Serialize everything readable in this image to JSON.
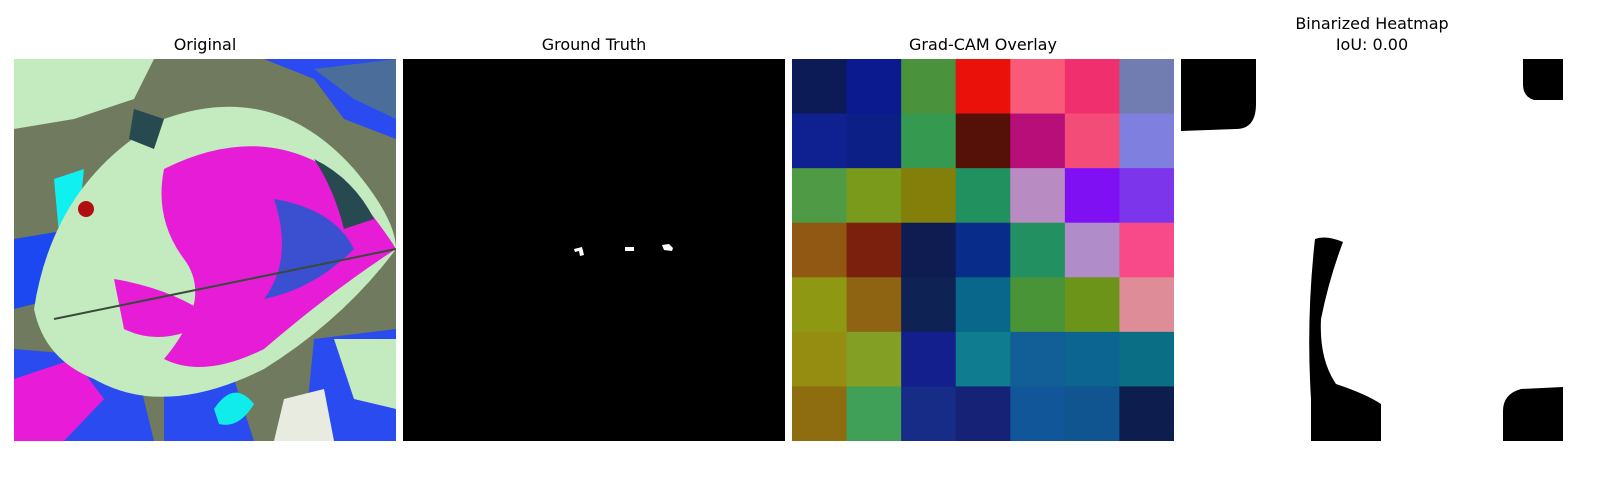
{
  "panels": [
    {
      "title": "Original"
    },
    {
      "title": "Ground Truth"
    },
    {
      "title": "Grad-CAM Overlay"
    },
    {
      "title_line1": "Binarized Heatmap",
      "title_line2": "IoU: 0.00"
    }
  ],
  "gradcam_grid": [
    [
      "#0c1a55",
      "#0b1a8e",
      "#4a923c",
      "#ea110b",
      "#f85a78",
      "#f0306e",
      "#717db0"
    ],
    [
      "#0f2090",
      "#0c1f86",
      "#359a50",
      "#551008",
      "#b80e7a",
      "#f44c78",
      "#7f7fe0"
    ],
    [
      "#4f9a44",
      "#7a9a1c",
      "#847e0a",
      "#229160",
      "#b88cc2",
      "#8010f4",
      "#7d35ec"
    ],
    [
      "#905812",
      "#7a200c",
      "#0f1c52",
      "#082c8a",
      "#229060",
      "#b08cc8",
      "#f84a88"
    ],
    [
      "#8e9812",
      "#8e6412",
      "#0e2254",
      "#08678a",
      "#4a9438",
      "#6c9418",
      "#de8c98"
    ],
    [
      "#958c12",
      "#84a024",
      "#141f8e",
      "#107c90",
      "#125e96",
      "#0b6590",
      "#0a6e84"
    ],
    [
      "#8e6c10",
      "#40a058",
      "#162c86",
      "#152276",
      "#12569a",
      "#105490",
      "#0c1d4e"
    ]
  ]
}
